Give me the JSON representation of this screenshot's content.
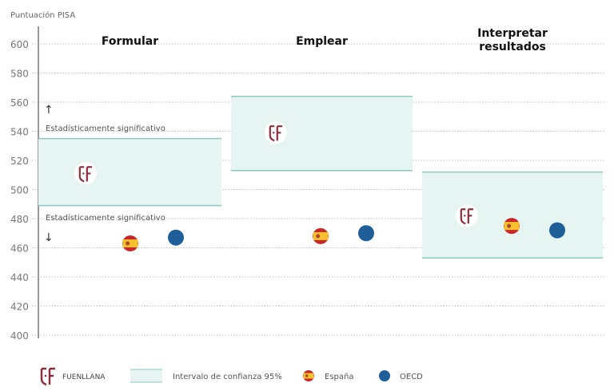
{
  "chart_data": {
    "type": "scatter",
    "ylabel": "Puntuación PISA",
    "ylim": [
      400,
      600
    ],
    "yticks": [
      400,
      420,
      440,
      460,
      480,
      500,
      520,
      540,
      560,
      580,
      600
    ],
    "grid": true,
    "significance_labels": {
      "above": "Estadísticamente significativo",
      "below": "Estadísticamente significativo"
    },
    "panels": [
      {
        "title": [
          "Formular"
        ],
        "ci": [
          489,
          535
        ],
        "fuenllana": 511,
        "espana": 463,
        "oecd": 467
      },
      {
        "title": [
          "Emplear"
        ],
        "ci": [
          513,
          564
        ],
        "fuenllana": 539,
        "espana": 468,
        "oecd": 470
      },
      {
        "title": [
          "Interpretar",
          "resultados"
        ],
        "ci": [
          453,
          512
        ],
        "fuenllana": 482,
        "espana": 475,
        "oecd": 472
      }
    ],
    "legend": {
      "position": "bottom",
      "fuenllana": "FUENLLANA",
      "ci": "Intervalo de confianza 95%",
      "espana": "España",
      "oecd": "OECD"
    },
    "colors": {
      "ci_fill": "#e6f4f2",
      "ci_line": "#8ccabe",
      "oecd": "#1f5f99",
      "brand": "#8e2a3a",
      "flag_red": "#c8262b",
      "flag_yellow": "#f5c12e"
    }
  }
}
